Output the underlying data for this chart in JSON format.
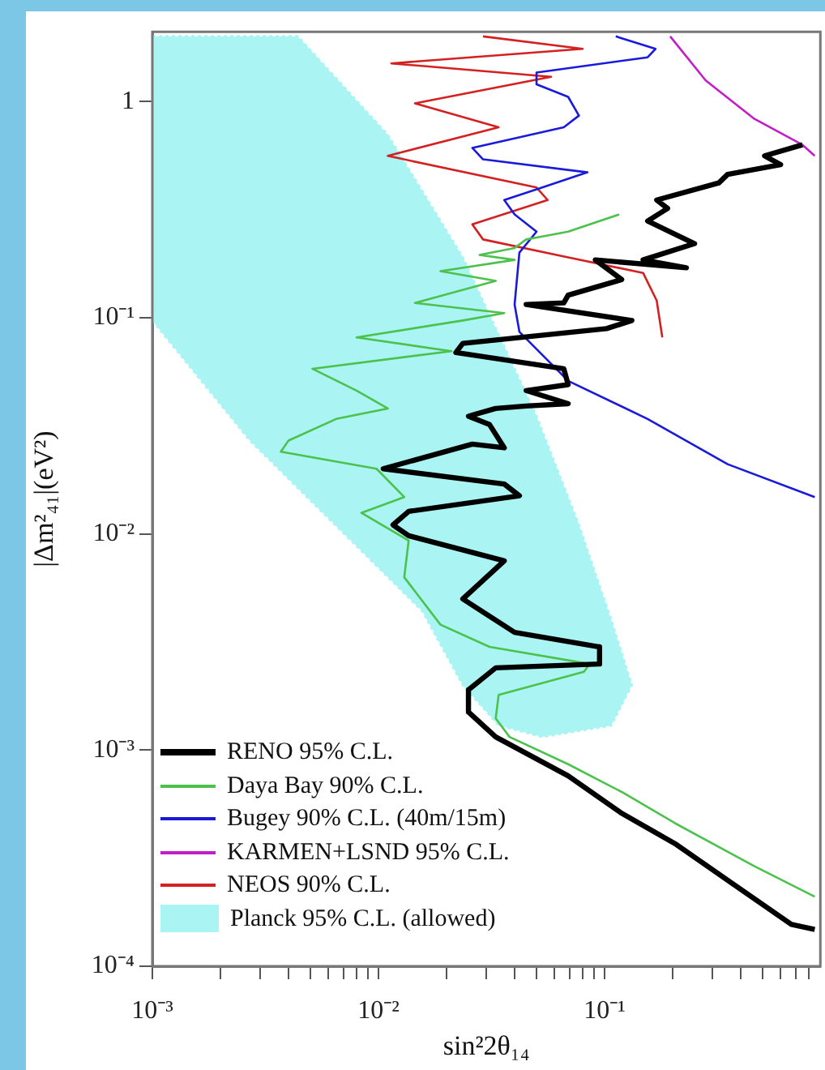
{
  "chart_data": {
    "type": "line",
    "xlabel": "sin²2θ₁₄",
    "ylabel": "|Δm²₄₁|(eV²)",
    "log": "xy",
    "grid": false,
    "legend": "bottom left",
    "marker": "none",
    "line_style": "solid",
    "xlim": [
      0.001,
      0.9
    ],
    "ylim": [
      0.0001,
      2.1
    ],
    "xticks": [
      {
        "value": 0.001,
        "label": "10⁻³"
      },
      {
        "value": 0.002,
        "label": null
      },
      {
        "value": 0.003,
        "label": null
      },
      {
        "value": 0.004,
        "label": null
      },
      {
        "value": 0.005,
        "label": null
      },
      {
        "value": 0.006,
        "label": null
      },
      {
        "value": 0.007,
        "label": null
      },
      {
        "value": 0.008,
        "label": null
      },
      {
        "value": 0.009,
        "label": null
      },
      {
        "value": 0.01,
        "label": "10⁻²"
      },
      {
        "value": 0.02,
        "label": null
      },
      {
        "value": 0.03,
        "label": null
      },
      {
        "value": 0.04,
        "label": null
      },
      {
        "value": 0.05,
        "label": null
      },
      {
        "value": 0.06,
        "label": null
      },
      {
        "value": 0.07,
        "label": null
      },
      {
        "value": 0.08,
        "label": null
      },
      {
        "value": 0.09,
        "label": null
      },
      {
        "value": 0.1,
        "label": "10⁻¹"
      },
      {
        "value": 0.2,
        "label": null
      },
      {
        "value": 0.3,
        "label": null
      },
      {
        "value": 0.4,
        "label": null
      },
      {
        "value": 0.5,
        "label": null
      },
      {
        "value": 0.6,
        "label": null
      },
      {
        "value": 0.7,
        "label": null
      },
      {
        "value": 0.8,
        "label": null
      }
    ],
    "yticks": [
      {
        "value": 0.0001,
        "label": "10⁻⁴"
      },
      {
        "value": 0.001,
        "label": "10⁻³"
      },
      {
        "value": 0.01,
        "label": "10⁻²"
      },
      {
        "value": 0.1,
        "label": "10⁻¹"
      },
      {
        "value": 1,
        "label": "1"
      }
    ],
    "series": [
      {
        "name": "RENO 95% C.L.",
        "color": "#000000",
        "x": [
          0.75,
          0.51,
          0.6,
          0.35,
          0.32,
          0.17,
          0.19,
          0.155,
          0.25,
          0.148,
          0.23,
          0.091,
          0.119,
          0.069,
          0.066,
          0.045,
          0.132,
          0.102,
          0.0236,
          0.022,
          0.066,
          0.069,
          0.045,
          0.069,
          0.045,
          0.033,
          0.025,
          0.031,
          0.036,
          0.026,
          0.0105,
          0.036,
          0.042,
          0.0136,
          0.0116,
          0.0136,
          0.036,
          0.0236,
          0.04,
          0.095,
          0.095,
          0.033,
          0.025,
          0.025,
          0.033,
          0.069,
          0.119,
          0.204,
          0.35,
          0.67,
          0.85
        ],
        "values": [
          0.63,
          0.56,
          0.51,
          0.46,
          0.42,
          0.35,
          0.32,
          0.28,
          0.22,
          0.185,
          0.17,
          0.185,
          0.15,
          0.127,
          0.117,
          0.115,
          0.097,
          0.089,
          0.076,
          0.069,
          0.058,
          0.049,
          0.046,
          0.04,
          0.039,
          0.038,
          0.035,
          0.032,
          0.025,
          0.026,
          0.02,
          0.017,
          0.015,
          0.0127,
          0.011,
          0.0098,
          0.0075,
          0.005,
          0.0035,
          0.003,
          0.0025,
          0.0024,
          0.0019,
          0.0015,
          0.00115,
          0.00076,
          0.00051,
          0.00037,
          0.00025,
          0.000156,
          0.000148
        ]
      },
      {
        "name": "Daya Bay 90% C.L.",
        "color": "#4cc24c",
        "x": [
          0.116,
          0.069,
          0.056,
          0.045,
          0.04,
          0.028,
          0.04,
          0.0188,
          0.033,
          0.0145,
          0.036,
          0.0236,
          0.008,
          0.021,
          0.0051,
          0.008,
          0.011,
          0.0065,
          0.004,
          0.0037,
          0.0098,
          0.013,
          0.0084,
          0.0136,
          0.013,
          0.0188,
          0.031,
          0.086,
          0.081,
          0.034,
          0.033,
          0.038,
          0.069,
          0.119,
          0.204,
          0.46,
          0.85
        ],
        "values": [
          0.3,
          0.25,
          0.24,
          0.23,
          0.21,
          0.195,
          0.185,
          0.164,
          0.148,
          0.117,
          0.105,
          0.097,
          0.081,
          0.07,
          0.058,
          0.046,
          0.038,
          0.034,
          0.027,
          0.024,
          0.02,
          0.0148,
          0.0125,
          0.0093,
          0.0063,
          0.0038,
          0.003,
          0.0025,
          0.0023,
          0.0018,
          0.0014,
          0.00115,
          0.00086,
          0.00064,
          0.00046,
          0.00029,
          0.00021
        ]
      },
      {
        "name": "Bugey 90% C.L. (40m/15m)",
        "color": "#1a1adb",
        "x": [
          0.112,
          0.168,
          0.155,
          0.05,
          0.05,
          0.069,
          0.077,
          0.066,
          0.026,
          0.029,
          0.084,
          0.053,
          0.036,
          0.04,
          0.05,
          0.042,
          0.04,
          0.042,
          0.069,
          0.155,
          0.35,
          0.85
        ],
        "values": [
          2.0,
          1.75,
          1.6,
          1.36,
          1.2,
          1.05,
          0.86,
          0.76,
          0.61,
          0.54,
          0.47,
          0.4,
          0.35,
          0.3,
          0.25,
          0.2,
          0.115,
          0.086,
          0.051,
          0.034,
          0.021,
          0.0148
        ]
      },
      {
        "name": "KARMEN+LSND 95% C.L.",
        "color": "#c21ec8",
        "x": [
          0.195,
          0.28,
          0.46,
          0.75,
          0.85
        ],
        "values": [
          2.0,
          1.25,
          0.83,
          0.63,
          0.56
        ]
      },
      {
        "name": "NEOS 90% C.L.",
        "color": "#d42020",
        "x": [
          0.029,
          0.08,
          0.0114,
          0.058,
          0.0145,
          0.034,
          0.011,
          0.05,
          0.056,
          0.026,
          0.029,
          0.069,
          0.148,
          0.17,
          0.18
        ],
        "values": [
          2.0,
          1.75,
          1.5,
          1.3,
          0.98,
          0.76,
          0.56,
          0.4,
          0.35,
          0.27,
          0.23,
          0.19,
          0.161,
          0.12,
          0.081
        ]
      },
      {
        "name": "Planck 95% C.L. (allowed)",
        "type": "area",
        "color": "#aaf4f4",
        "line_style": "dotted",
        "x": [
          0.001,
          0.0044,
          0.011,
          0.0236,
          0.05,
          0.077,
          0.107,
          0.132,
          0.107,
          0.053,
          0.034,
          0.0236,
          0.0156,
          0.0027,
          0.001,
          0.001
        ],
        "values": [
          2.0,
          2.0,
          0.7,
          0.19,
          0.035,
          0.011,
          0.004,
          0.002,
          0.0013,
          0.00115,
          0.0013,
          0.002,
          0.0044,
          0.027,
          0.097,
          2.0
        ]
      }
    ]
  }
}
